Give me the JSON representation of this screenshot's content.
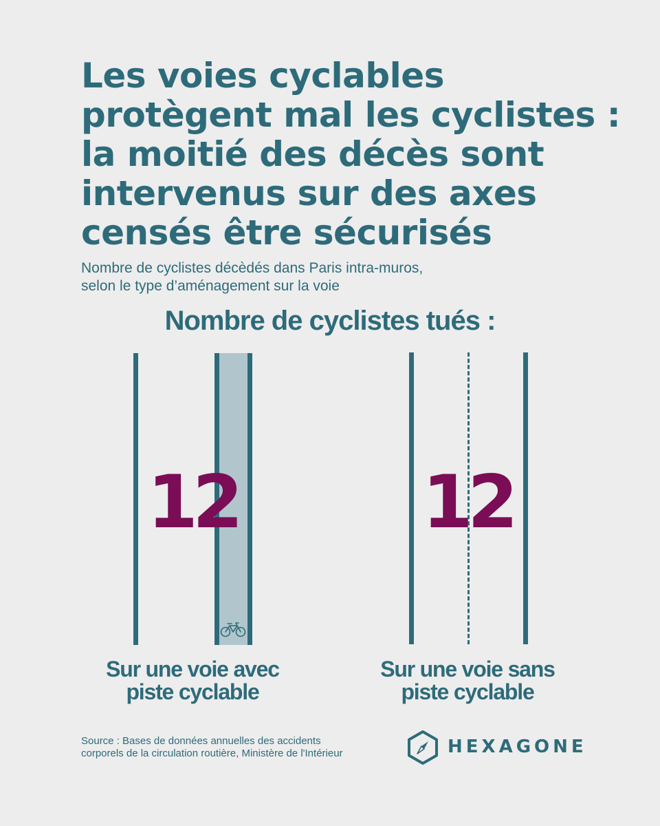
{
  "title": {
    "lines": [
      "Les voies cyclables",
      "protègent mal les cyclistes :",
      "la moitié des décès sont",
      "intervenus sur des axes",
      "censés être sécurisés"
    ]
  },
  "subtitle": {
    "lines": [
      "Nombre de cyclistes décèdés dans Paris intra-muros,",
      "selon le type d’aménagement sur la voie"
    ]
  },
  "heading": "Nombre de cyclistes tués :",
  "roads": [
    {
      "value": "12",
      "label_lines": [
        "Sur une voie avec",
        "piste cyclable"
      ],
      "icon": "bicycle-icon"
    },
    {
      "value": "12",
      "label_lines": [
        "Sur une voie sans",
        "piste cyclable"
      ]
    }
  ],
  "source": {
    "lines": [
      "Source : Bases de données annuelles des accidents",
      "corporels de la circulation routière, Ministère de l'Intérieur"
    ]
  },
  "brand": {
    "name": "HEXAGONE",
    "icon": "compass-hexagon-icon"
  },
  "colors": {
    "teal": "#2e6b7a",
    "lane": "#b1c6cc",
    "accent": "#7a0d55",
    "background": "#ededed"
  }
}
